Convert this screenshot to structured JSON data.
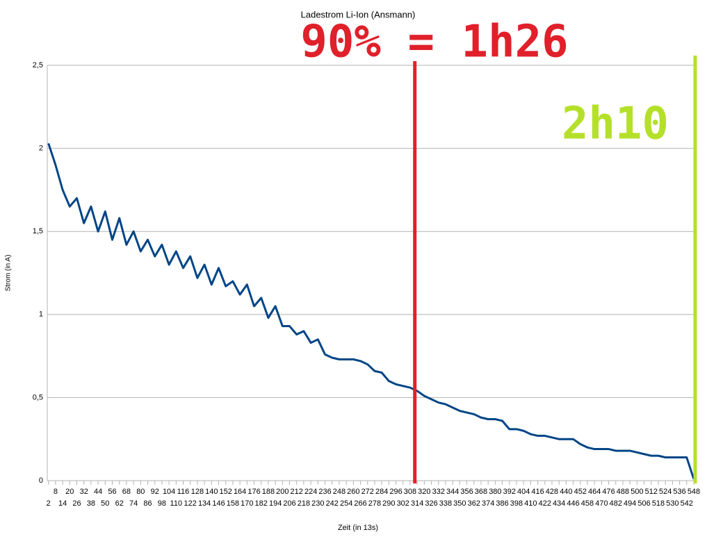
{
  "chart_data": {
    "type": "line",
    "title": "Ladestrom Li-Ion (Ansmann)",
    "x_label": "Zeit (in 13s)",
    "y_label": "Strom (in A)",
    "x": [
      2,
      8,
      14,
      20,
      26,
      32,
      38,
      44,
      50,
      56,
      62,
      68,
      74,
      80,
      86,
      92,
      98,
      104,
      110,
      116,
      122,
      128,
      134,
      140,
      146,
      152,
      158,
      164,
      170,
      176,
      182,
      188,
      194,
      200,
      206,
      212,
      218,
      224,
      230,
      236,
      242,
      248,
      254,
      260,
      266,
      272,
      278,
      284,
      290,
      296,
      302,
      308,
      314,
      320,
      326,
      332,
      338,
      344,
      350,
      356,
      362,
      368,
      374,
      380,
      386,
      392,
      398,
      404,
      410,
      416,
      422,
      428,
      434,
      440,
      446,
      452,
      458,
      464,
      470,
      476,
      482,
      488,
      494,
      500,
      506,
      512,
      518,
      524,
      530,
      536,
      542,
      548
    ],
    "series": [
      {
        "color": "#004586",
        "values": [
          2.03,
          1.9,
          1.75,
          1.65,
          1.7,
          1.55,
          1.65,
          1.5,
          1.62,
          1.45,
          1.58,
          1.42,
          1.5,
          1.38,
          1.45,
          1.35,
          1.42,
          1.3,
          1.38,
          1.28,
          1.35,
          1.22,
          1.3,
          1.18,
          1.28,
          1.17,
          1.2,
          1.12,
          1.18,
          1.05,
          1.1,
          0.98,
          1.05,
          0.93,
          0.93,
          0.88,
          0.9,
          0.83,
          0.85,
          0.76,
          0.74,
          0.73,
          0.73,
          0.73,
          0.72,
          0.7,
          0.66,
          0.65,
          0.6,
          0.58,
          0.57,
          0.56,
          0.54,
          0.51,
          0.49,
          0.47,
          0.46,
          0.44,
          0.42,
          0.41,
          0.4,
          0.38,
          0.37,
          0.37,
          0.36,
          0.31,
          0.31,
          0.3,
          0.28,
          0.27,
          0.27,
          0.26,
          0.25,
          0.25,
          0.25,
          0.22,
          0.2,
          0.19,
          0.19,
          0.19,
          0.18,
          0.18,
          0.18,
          0.17,
          0.16,
          0.15,
          0.15,
          0.14,
          0.14,
          0.14,
          0.14,
          0.01
        ]
      }
    ],
    "xlim": [
      1,
      548
    ],
    "xticks": [
      2,
      8,
      14,
      20,
      26,
      32,
      38,
      44,
      50,
      56,
      62,
      68,
      74,
      80,
      86,
      92,
      98,
      104,
      110,
      116,
      122,
      128,
      134,
      140,
      146,
      152,
      158,
      164,
      170,
      176,
      182,
      188,
      194,
      200,
      206,
      212,
      218,
      224,
      230,
      236,
      242,
      248,
      254,
      260,
      266,
      272,
      278,
      284,
      290,
      296,
      302,
      308,
      314,
      320,
      326,
      332,
      338,
      344,
      350,
      356,
      362,
      368,
      374,
      380,
      386,
      392,
      398,
      404,
      410,
      416,
      422,
      428,
      434,
      440,
      446,
      452,
      458,
      464,
      470,
      476,
      482,
      488,
      494,
      500,
      506,
      512,
      518,
      524,
      530,
      536,
      542,
      548
    ],
    "ylim": [
      0,
      2.5
    ],
    "yticks": [
      0,
      {
        "value": 0.5,
        "label": "0,5"
      },
      1,
      {
        "value": 1.5,
        "label": "1,5"
      },
      2,
      {
        "value": 2.5,
        "label": "2,5"
      }
    ],
    "grid": true,
    "markers": [
      {
        "x": 312,
        "color": "#e0202a",
        "label": "90% = 1h26"
      },
      {
        "x": 548,
        "color": "#b5e02a",
        "label": "2h10"
      }
    ]
  }
}
